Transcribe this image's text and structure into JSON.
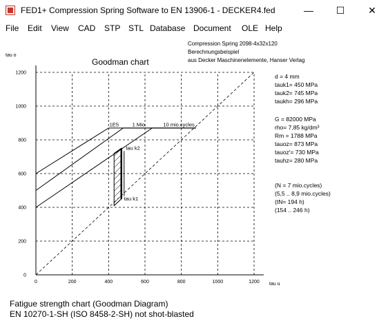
{
  "window": {
    "title": "FED1+  Compression Spring Software to EN 13906-1  -  DECKER4.fed",
    "minimize_glyph": "—",
    "maximize_glyph": "☐",
    "close_glyph": "✕"
  },
  "menu": [
    "File",
    "Edit",
    "View",
    "CAD",
    "STP",
    "STL",
    "Database",
    "Document",
    "OLE",
    "Help"
  ],
  "header": {
    "line1": "Compression Spring  2098-4x32x120",
    "line2": "Berechnungsbeispiel",
    "line3": "aus Decker Maschinenelemente, Hanser Verlag"
  },
  "info": {
    "block1": [
      "d  = 4 mm",
      "tauk1=  450 MPa",
      "tauk2=  745 MPa",
      "taukh=  296 MPa"
    ],
    "block2": [
      "G  =  82000 MPa",
      "rho=  7,85 kg/dm³",
      "Rm =  1788 MPa",
      "tauoz=  873 MPa",
      "tauoz'=   730 MPa",
      "tauhz=  280 MPa"
    ],
    "block3": [
      "(N = 7 mio.cycles)",
      "(5,5 .. 8,9 mio.cycles)",
      "(tN= 194 h)",
      "(154 .. 246 h)"
    ]
  },
  "chart_data": {
    "type": "line",
    "title": "Goodman chart",
    "xlabel": "tau u",
    "ylabel": "tau o",
    "xlim": [
      0,
      1200
    ],
    "ylim": [
      0,
      1200
    ],
    "xticks": [
      0,
      200,
      400,
      600,
      800,
      1000,
      1200
    ],
    "yticks": [
      0,
      200,
      400,
      600,
      800,
      1000,
      1200
    ],
    "grid": true,
    "diagonal_label": "",
    "series": [
      {
        "name": "1E5",
        "points": [
          [
            0,
            600
          ],
          [
            400,
            870
          ],
          [
            880,
            870
          ]
        ]
      },
      {
        "name": "1 Mio.",
        "points": [
          [
            0,
            500
          ],
          [
            480,
            870
          ],
          [
            880,
            870
          ]
        ]
      },
      {
        "name": "10 mio.cycles",
        "points": [
          [
            0,
            400
          ],
          [
            640,
            870
          ],
          [
            880,
            870
          ]
        ]
      }
    ],
    "diagonal": [
      [
        0,
        0
      ],
      [
        1200,
        1200
      ]
    ],
    "hatched_region": {
      "min_stress_range": [
        430,
        470
      ],
      "lower_left": [
        430,
        410
      ],
      "upper_left": [
        430,
        720
      ],
      "lower_right": [
        470,
        450
      ],
      "upper_right": [
        470,
        750
      ]
    },
    "annotations": [
      {
        "text": "1E5",
        "x": 405,
        "y": 880
      },
      {
        "text": "1 Mio.",
        "x": 530,
        "y": 880
      },
      {
        "text": "10 mio.cycles",
        "x": 700,
        "y": 880
      },
      {
        "text": "tau k2",
        "x": 495,
        "y": 740
      },
      {
        "text": "tau k1",
        "x": 485,
        "y": 440
      }
    ]
  },
  "status": {
    "line1": "Fatigue strength chart (Goodman Diagram)",
    "line2": "EN 10270-1-SH (ISO 8458-2-SH) not shot-blasted"
  }
}
